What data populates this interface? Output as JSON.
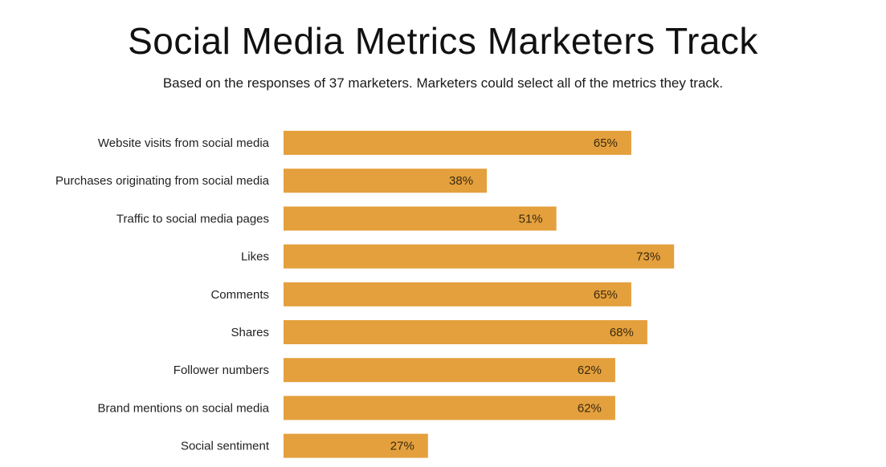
{
  "chart_data": {
    "type": "bar",
    "orientation": "horizontal",
    "title": "Social Media Metrics Marketers Track",
    "subtitle": "Based on the responses of 37 marketers. Marketers could select all of the metrics they track.",
    "categories": [
      "Website visits from social media",
      "Purchases originating from social media",
      "Traffic to social media pages",
      "Likes",
      "Comments",
      "Shares",
      "Follower numbers",
      "Brand mentions on social media",
      "Social sentiment"
    ],
    "values": [
      65,
      38,
      51,
      73,
      65,
      68,
      62,
      62,
      27
    ],
    "value_labels": [
      "65%",
      "38%",
      "51%",
      "73%",
      "65%",
      "68%",
      "62%",
      "62%",
      "27%"
    ],
    "unit": "%",
    "xlim": [
      0,
      100
    ],
    "bar_color": "#E4A03D",
    "grid": false,
    "legend": "none"
  }
}
